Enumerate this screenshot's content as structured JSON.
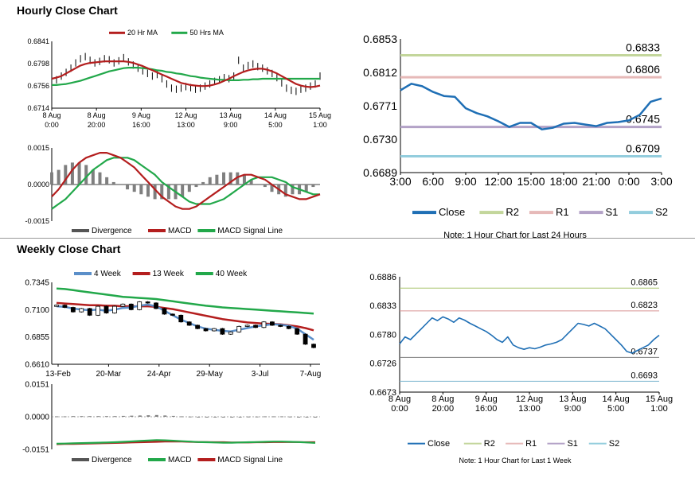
{
  "titles": {
    "hourly": "Hourly Close Chart",
    "weekly": "Weekly Close Chart"
  },
  "colors": {
    "red": "#b41e1e",
    "green": "#22a84a",
    "blue": "#1f6fb5",
    "bar": "#7f7f7f",
    "r2": "#c3d69b",
    "r1": "#e6b9b8",
    "s1": "#b3a2c7",
    "s2": "#93cddd",
    "grid": "#d0d0d0"
  },
  "chart_data": [
    {
      "id": "hourly_price",
      "type": "line",
      "legend": [
        "20 Hr MA",
        "50 Hrs MA"
      ],
      "yticks": [
        "0.6841",
        "0.6798",
        "0.6756",
        "0.6714"
      ],
      "ylim": [
        0.6714,
        0.6841
      ],
      "xticks": [
        [
          "8 Aug",
          "0:00"
        ],
        [
          "8 Aug",
          "20:00"
        ],
        [
          "9 Aug",
          "16:00"
        ],
        [
          "12 Aug",
          "13:00"
        ],
        [
          "13 Aug",
          "9:00"
        ],
        [
          "14 Aug",
          "5:00"
        ],
        [
          "15 Aug",
          "1:00"
        ]
      ],
      "price": [
        0.6762,
        0.6768,
        0.6775,
        0.6782,
        0.679,
        0.68,
        0.6808,
        0.6812,
        0.6805,
        0.68,
        0.6803,
        0.6808,
        0.6806,
        0.68,
        0.6804,
        0.681,
        0.6802,
        0.6796,
        0.679,
        0.6785,
        0.678,
        0.6775,
        0.6778,
        0.677,
        0.676,
        0.6752,
        0.675,
        0.6752,
        0.6755,
        0.6753,
        0.675,
        0.6752,
        0.6756,
        0.676,
        0.6765,
        0.6768,
        0.6772,
        0.677,
        0.6775,
        0.6805,
        0.679,
        0.6795,
        0.6798,
        0.6793,
        0.679,
        0.6785,
        0.678,
        0.6772,
        0.6762,
        0.6752,
        0.6748,
        0.6746,
        0.675,
        0.6752,
        0.6756,
        0.676,
        0.6775
      ],
      "ma20": [
        0.677,
        0.6772,
        0.6775,
        0.678,
        0.6785,
        0.679,
        0.6795,
        0.6798,
        0.68,
        0.6801,
        0.6802,
        0.6803,
        0.6803,
        0.6803,
        0.6803,
        0.6803,
        0.6802,
        0.68,
        0.6797,
        0.6794,
        0.679,
        0.6786,
        0.6782,
        0.6778,
        0.6774,
        0.677,
        0.6766,
        0.6762,
        0.676,
        0.6758,
        0.6757,
        0.6756,
        0.6756,
        0.6757,
        0.6759,
        0.6762,
        0.6766,
        0.677,
        0.6775,
        0.6779,
        0.6783,
        0.6786,
        0.6788,
        0.6789,
        0.6789,
        0.6787,
        0.6784,
        0.678,
        0.6775,
        0.677,
        0.6765,
        0.676,
        0.6757,
        0.6755,
        0.6754,
        0.6755,
        0.6757
      ],
      "ma50": [
        0.6758,
        0.6758,
        0.6759,
        0.676,
        0.6762,
        0.6764,
        0.6766,
        0.6769,
        0.6772,
        0.6775,
        0.6778,
        0.6781,
        0.6784,
        0.6786,
        0.6788,
        0.679,
        0.6791,
        0.6791,
        0.6791,
        0.679,
        0.6789,
        0.6788,
        0.6786,
        0.6785,
        0.6783,
        0.6782,
        0.678,
        0.6779,
        0.6777,
        0.6775,
        0.6774,
        0.6772,
        0.6771,
        0.677,
        0.6769,
        0.6768,
        0.6768,
        0.6767,
        0.6767,
        0.6767,
        0.6768,
        0.6768,
        0.6769,
        0.6769,
        0.677,
        0.677,
        0.677,
        0.677,
        0.677,
        0.677,
        0.677,
        0.677,
        0.677,
        0.677,
        0.677,
        0.677,
        0.677
      ]
    },
    {
      "id": "hourly_macd",
      "type": "line",
      "legend": [
        "Divergence",
        "MACD",
        "MACD Signal Line"
      ],
      "yticks": [
        "0.0015",
        "0.0000",
        "-0.0015"
      ],
      "ylim": [
        -0.0015,
        0.0015
      ],
      "macd": [
        -0.0005,
        -0.0002,
        0.0002,
        0.0006,
        0.0009,
        0.0011,
        0.0012,
        0.0013,
        0.0013,
        0.0012,
        0.0011,
        0.0009,
        0.0007,
        0.0004,
        0.0001,
        -0.0002,
        -0.0005,
        -0.0007,
        -0.0009,
        -0.001,
        -0.001,
        -0.0009,
        -0.0007,
        -0.0005,
        -0.0003,
        -0.0001,
        0.0001,
        0.0003,
        0.0004,
        0.0004,
        0.0003,
        0.0002,
        0.0,
        -0.0002,
        -0.0004,
        -0.0005,
        -0.0006,
        -0.0006,
        -0.0005,
        -0.0004
      ],
      "signal": [
        -0.001,
        -0.0008,
        -0.0006,
        -0.0003,
        0.0,
        0.0003,
        0.0006,
        0.0008,
        0.001,
        0.0011,
        0.0011,
        0.0011,
        0.001,
        0.0008,
        0.0006,
        0.0004,
        0.0001,
        -0.0001,
        -0.0003,
        -0.0005,
        -0.0007,
        -0.0008,
        -0.0008,
        -0.0008,
        -0.0007,
        -0.0006,
        -0.0004,
        -0.0002,
        0.0,
        0.0002,
        0.0003,
        0.0003,
        0.0003,
        0.0002,
        0.0001,
        -0.0001,
        -0.0002,
        -0.0003,
        -0.0004,
        -0.0004
      ],
      "divergence": [
        0.0005,
        0.0006,
        0.0008,
        0.0009,
        0.0009,
        0.0008,
        0.0006,
        0.0005,
        0.0003,
        0.0001,
        0.0,
        -0.0002,
        -0.0003,
        -0.0004,
        -0.0005,
        -0.0006,
        -0.0006,
        -0.0006,
        -0.0006,
        -0.0005,
        -0.0003,
        -0.0001,
        0.0001,
        0.0003,
        0.0004,
        0.0005,
        0.0005,
        0.0005,
        0.0004,
        0.0002,
        0.0,
        -0.0001,
        -0.0003,
        -0.0004,
        -0.0005,
        -0.0004,
        -0.0004,
        -0.0003,
        -0.0001,
        0.0
      ]
    },
    {
      "id": "hourly_24h",
      "type": "line",
      "yticks": [
        "0.6853",
        "0.6812",
        "0.6771",
        "0.6730",
        "0.6689"
      ],
      "ylim": [
        0.6689,
        0.6853
      ],
      "xticks": [
        "3:00",
        "6:00",
        "9:00",
        "12:00",
        "15:00",
        "18:00",
        "21:00",
        "0:00",
        "3:00"
      ],
      "close": [
        0.679,
        0.6798,
        0.6795,
        0.6788,
        0.6783,
        0.6782,
        0.6768,
        0.6762,
        0.6758,
        0.6752,
        0.6745,
        0.675,
        0.675,
        0.6742,
        0.6744,
        0.6749,
        0.675,
        0.6748,
        0.6746,
        0.675,
        0.6751,
        0.6753,
        0.676,
        0.6776,
        0.678
      ],
      "levels": {
        "R2": 0.6833,
        "R1": 0.6806,
        "S1": 0.6745,
        "S2": 0.6709
      },
      "level_labels": {
        "R2": "0.6833",
        "R1": "0.6806",
        "S1": "0.6745",
        "S2": "0.6709"
      },
      "legend": [
        "Close",
        "R2",
        "R1",
        "S1",
        "S2"
      ],
      "note": "Note: 1 Hour Chart for Last 24 Hours"
    },
    {
      "id": "weekly_price",
      "type": "line",
      "legend": [
        "4 Week",
        "13 Week",
        "40 Week"
      ],
      "yticks": [
        "0.7345",
        "0.7100",
        "0.6855",
        "0.6610"
      ],
      "ylim": [
        0.661,
        0.7345
      ],
      "xticks": [
        "13-Feb",
        "20-Mar",
        "24-Apr",
        "29-May",
        "3-Jul",
        "7-Aug"
      ],
      "close": [
        0.714,
        0.712,
        0.708,
        0.711,
        0.705,
        0.713,
        0.707,
        0.713,
        0.715,
        0.71,
        0.717,
        0.716,
        0.711,
        0.706,
        0.705,
        0.699,
        0.696,
        0.693,
        0.691,
        0.693,
        0.688,
        0.69,
        0.695,
        0.696,
        0.694,
        0.699,
        0.696,
        0.695,
        0.693,
        0.688,
        0.679,
        0.676
      ],
      "wk4": [
        0.713,
        0.7125,
        0.711,
        0.71,
        0.7095,
        0.71,
        0.709,
        0.71,
        0.7115,
        0.712,
        0.7135,
        0.7145,
        0.713,
        0.709,
        0.705,
        0.701,
        0.698,
        0.695,
        0.693,
        0.692,
        0.691,
        0.6905,
        0.692,
        0.6935,
        0.695,
        0.696,
        0.697,
        0.6965,
        0.6955,
        0.693,
        0.688,
        0.683
      ],
      "wk13": [
        0.716,
        0.7155,
        0.715,
        0.7145,
        0.714,
        0.714,
        0.7135,
        0.7135,
        0.713,
        0.713,
        0.713,
        0.713,
        0.7125,
        0.7115,
        0.7105,
        0.709,
        0.7075,
        0.706,
        0.7045,
        0.703,
        0.7015,
        0.7005,
        0.6995,
        0.6985,
        0.698,
        0.6975,
        0.6972,
        0.6968,
        0.696,
        0.695,
        0.6935,
        0.6915
      ],
      "wk40": [
        0.729,
        0.7285,
        0.7275,
        0.7265,
        0.7255,
        0.7245,
        0.7235,
        0.7225,
        0.7215,
        0.721,
        0.7205,
        0.72,
        0.7195,
        0.7185,
        0.7175,
        0.7165,
        0.7155,
        0.7145,
        0.7135,
        0.7128,
        0.712,
        0.7115,
        0.711,
        0.7105,
        0.71,
        0.7095,
        0.709,
        0.7085,
        0.708,
        0.7075,
        0.707,
        0.7065
      ]
    },
    {
      "id": "weekly_macd",
      "type": "line",
      "legend": [
        "Divergence",
        "MACD",
        "MACD Signal Line"
      ],
      "yticks": [
        "0.0151",
        "0.0000",
        "-0.0151"
      ],
      "ylim": [
        -0.0151,
        0.0151
      ],
      "macd": [
        -0.0125,
        -0.0124,
        -0.0123,
        -0.0122,
        -0.0121,
        -0.012,
        -0.0119,
        -0.0118,
        -0.0116,
        -0.0114,
        -0.0112,
        -0.011,
        -0.0108,
        -0.0109,
        -0.0111,
        -0.0113,
        -0.0115,
        -0.0117,
        -0.0118,
        -0.0119,
        -0.012,
        -0.012,
        -0.0119,
        -0.0118,
        -0.0117,
        -0.0116,
        -0.0115,
        -0.0115,
        -0.0116,
        -0.0117,
        -0.0119,
        -0.0121
      ],
      "signal": [
        -0.0127,
        -0.0126,
        -0.0126,
        -0.0125,
        -0.0124,
        -0.0123,
        -0.0122,
        -0.0121,
        -0.012,
        -0.0119,
        -0.0118,
        -0.0117,
        -0.0116,
        -0.0115,
        -0.0115,
        -0.0115,
        -0.0116,
        -0.0117,
        -0.0117,
        -0.0118,
        -0.0118,
        -0.0119,
        -0.0119,
        -0.0119,
        -0.0118,
        -0.0118,
        -0.0117,
        -0.0117,
        -0.0117,
        -0.0117,
        -0.0118,
        -0.0118
      ],
      "divergence": [
        0.0002,
        0.0002,
        0.0003,
        0.0003,
        0.0003,
        0.0003,
        0.0003,
        0.0003,
        0.0004,
        0.0005,
        0.0006,
        0.0007,
        0.0008,
        0.0006,
        0.0004,
        0.0002,
        0.0001,
        0.0,
        -0.0001,
        -0.0001,
        -0.0002,
        -0.0001,
        0.0,
        0.0001,
        0.0001,
        0.0002,
        0.0002,
        0.0002,
        0.0001,
        0.0,
        -0.0001,
        -0.0003
      ]
    },
    {
      "id": "weekly_1w",
      "type": "line",
      "yticks": [
        "0.6886",
        "0.6833",
        "0.6780",
        "0.6726",
        "0.6673"
      ],
      "ylim": [
        0.6673,
        0.6886
      ],
      "xticks": [
        [
          "8 Aug",
          "0:00"
        ],
        [
          "8 Aug",
          "20:00"
        ],
        [
          "9 Aug",
          "16:00"
        ],
        [
          "12 Aug",
          "13:00"
        ],
        [
          "13 Aug",
          "9:00"
        ],
        [
          "14 Aug",
          "5:00"
        ],
        [
          "15 Aug",
          "1:00"
        ]
      ],
      "close": [
        0.6762,
        0.6775,
        0.677,
        0.678,
        0.679,
        0.68,
        0.681,
        0.6805,
        0.6812,
        0.6808,
        0.6802,
        0.681,
        0.6806,
        0.68,
        0.6795,
        0.679,
        0.6785,
        0.6778,
        0.677,
        0.6765,
        0.6775,
        0.676,
        0.6755,
        0.6752,
        0.6755,
        0.6753,
        0.6756,
        0.676,
        0.6762,
        0.6765,
        0.677,
        0.678,
        0.679,
        0.68,
        0.6798,
        0.6795,
        0.68,
        0.6795,
        0.679,
        0.678,
        0.677,
        0.676,
        0.6748,
        0.6745,
        0.675,
        0.6755,
        0.676,
        0.677,
        0.6778
      ],
      "levels": {
        "R2": 0.6865,
        "R1": 0.6823,
        "S1": 0.6737,
        "S2": 0.6693
      },
      "level_labels": {
        "R2": "0.6865",
        "R1": "0.6823",
        "S1": "0.6737",
        "S2": "0.6693"
      },
      "legend": [
        "Close",
        "R2",
        "R1",
        "S1",
        "S2"
      ],
      "note": "Note: 1 Hour Chart for Last 1 Week"
    }
  ]
}
